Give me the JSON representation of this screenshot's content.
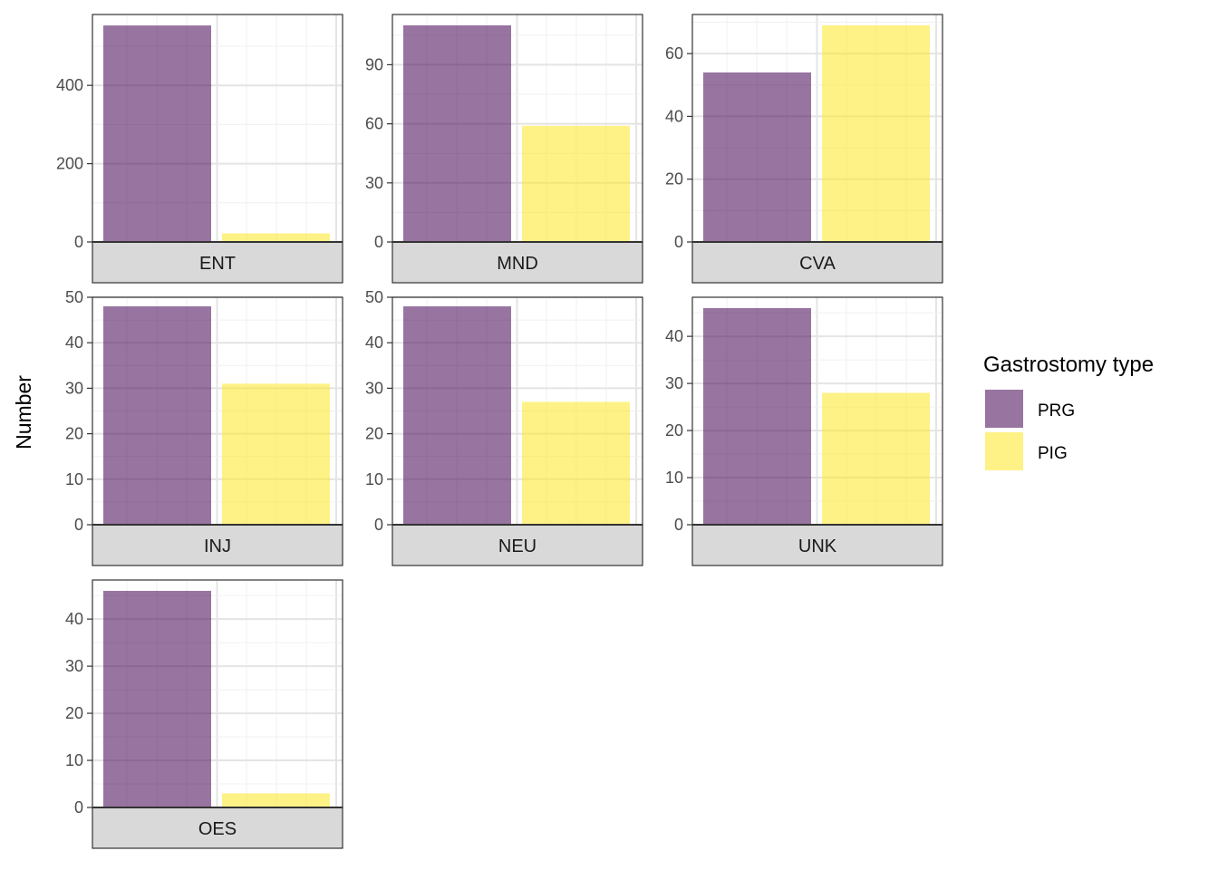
{
  "chart_data": {
    "type": "bar",
    "facet_layout": "wrap, 3 columns",
    "ylabel": "Number",
    "xlabel": "",
    "legend": {
      "title": "Gastrostomy type",
      "placement": "right",
      "entries": [
        {
          "name": "PRG",
          "color": "#440154"
        },
        {
          "name": "PIG",
          "color": "#FDE725"
        }
      ]
    },
    "bar_opacity": 0.55,
    "grid": true,
    "categories": [
      "PRG",
      "PIG"
    ],
    "panels": [
      {
        "label": "ENT",
        "values": [
          553,
          22
        ],
        "ylim": [
          0,
          581
        ],
        "yticks": [
          0,
          200,
          400
        ]
      },
      {
        "label": "MND",
        "values": [
          110,
          59
        ],
        "ylim": [
          0,
          115.5
        ],
        "yticks": [
          0,
          30,
          60,
          90
        ]
      },
      {
        "label": "CVA",
        "values": [
          54,
          69
        ],
        "ylim": [
          0,
          72.45
        ],
        "yticks": [
          0,
          20,
          40,
          60
        ]
      },
      {
        "label": "INJ",
        "values": [
          48,
          31
        ],
        "ylim": [
          0,
          50
        ],
        "yticks": [
          0,
          10,
          20,
          30,
          40,
          50
        ]
      },
      {
        "label": "NEU",
        "values": [
          48,
          27
        ],
        "ylim": [
          0,
          50
        ],
        "yticks": [
          0,
          10,
          20,
          30,
          40,
          50
        ]
      },
      {
        "label": "UNK",
        "values": [
          46,
          28
        ],
        "ylim": [
          0,
          48.3
        ],
        "yticks": [
          0,
          10,
          20,
          30,
          40
        ]
      },
      {
        "label": "OES",
        "values": [
          46,
          3
        ],
        "ylim": [
          0,
          48.3
        ],
        "yticks": [
          0,
          10,
          20,
          30,
          40
        ]
      }
    ]
  }
}
